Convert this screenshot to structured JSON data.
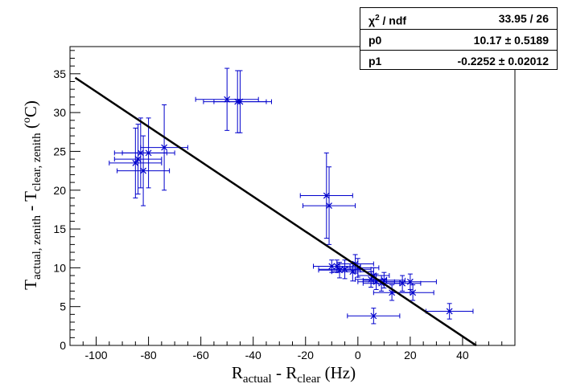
{
  "chart_data": {
    "type": "scatter",
    "xlabel_main": "R",
    "xlabel_sub1": "actual",
    "xlabel_mid": " - R",
    "xlabel_sub2": "clear",
    "xlabel_unit": " (Hz)",
    "ylabel_main": "T",
    "ylabel_sub1": "actual, zenith",
    "ylabel_mid": " - T",
    "ylabel_sub2": "clear, zenith",
    "ylabel_unit_pre": " (",
    "ylabel_unit_sup": "o",
    "ylabel_unit_post": "C)",
    "xlim": [
      -110,
      60
    ],
    "ylim": [
      0,
      38.5
    ],
    "xticks": [
      -100,
      -80,
      -60,
      -40,
      -20,
      0,
      20,
      40
    ],
    "yticks": [
      0,
      5,
      10,
      15,
      20,
      25,
      30,
      35
    ],
    "grid": false,
    "marker_color": "#0000cc",
    "fit_color": "#000000",
    "fit": {
      "p0": 10.17,
      "p1": -0.2252,
      "x_range": [
        -108,
        45.2
      ]
    },
    "points": [
      {
        "x": -85,
        "y": 23.5,
        "xerr": 10,
        "yerr": 4.5
      },
      {
        "x": -84,
        "y": 24.0,
        "xerr": 9,
        "yerr": 4.5
      },
      {
        "x": -83,
        "y": 24.8,
        "xerr": 10,
        "yerr": 4.5
      },
      {
        "x": -82,
        "y": 22.5,
        "xerr": 10,
        "yerr": 4.5
      },
      {
        "x": -80,
        "y": 24.8,
        "xerr": 10,
        "yerr": 4.5
      },
      {
        "x": -74,
        "y": 25.5,
        "xerr": 9,
        "yerr": 5.5
      },
      {
        "x": -50,
        "y": 31.7,
        "xerr": 12,
        "yerr": 4
      },
      {
        "x": -46,
        "y": 31.4,
        "xerr": 13,
        "yerr": 4
      },
      {
        "x": -45,
        "y": 31.4,
        "xerr": 10,
        "yerr": 4
      },
      {
        "x": -12,
        "y": 19.3,
        "xerr": 10,
        "yerr": 5.5
      },
      {
        "x": -11,
        "y": 18.0,
        "xerr": 10,
        "yerr": 5
      },
      {
        "x": -10,
        "y": 10.2,
        "xerr": 7,
        "yerr": 0.8
      },
      {
        "x": -8,
        "y": 10.2,
        "xerr": 9,
        "yerr": 0.8
      },
      {
        "x": -7,
        "y": 9.7,
        "xerr": 8,
        "yerr": 1
      },
      {
        "x": -5,
        "y": 9.8,
        "xerr": 10,
        "yerr": 1.2
      },
      {
        "x": -2,
        "y": 9.5,
        "xerr": 8,
        "yerr": 1.2
      },
      {
        "x": -1,
        "y": 10.5,
        "xerr": 7,
        "yerr": 1.2
      },
      {
        "x": 0,
        "y": 10.0,
        "xerr": 8,
        "yerr": 1.2
      },
      {
        "x": 5,
        "y": 8.5,
        "xerr": 6,
        "yerr": 1
      },
      {
        "x": 6,
        "y": 9.0,
        "xerr": 6,
        "yerr": 1
      },
      {
        "x": 7,
        "y": 8.2,
        "xerr": 7,
        "yerr": 1
      },
      {
        "x": 9,
        "y": 8.0,
        "xerr": 7,
        "yerr": 1
      },
      {
        "x": 10,
        "y": 8.4,
        "xerr": 8,
        "yerr": 1
      },
      {
        "x": 13,
        "y": 6.8,
        "xerr": 7,
        "yerr": 1
      },
      {
        "x": 17,
        "y": 8.0,
        "xerr": 7,
        "yerr": 1
      },
      {
        "x": 20,
        "y": 8.2,
        "xerr": 10,
        "yerr": 1
      },
      {
        "x": 21,
        "y": 6.8,
        "xerr": 8,
        "yerr": 1
      },
      {
        "x": 6,
        "y": 3.8,
        "xerr": 10,
        "yerr": 1
      },
      {
        "x": 35,
        "y": 4.4,
        "xerr": 9,
        "yerr": 1
      }
    ]
  },
  "stats": {
    "rows": [
      {
        "key_sym": "χ",
        "key_sup": "2",
        "key_rest": " / ndf",
        "value": "33.95 / 26"
      },
      {
        "key": "p0",
        "value": "10.17 ± 0.5189"
      },
      {
        "key": "p1",
        "value": "-0.2252 ± 0.02012"
      }
    ]
  }
}
